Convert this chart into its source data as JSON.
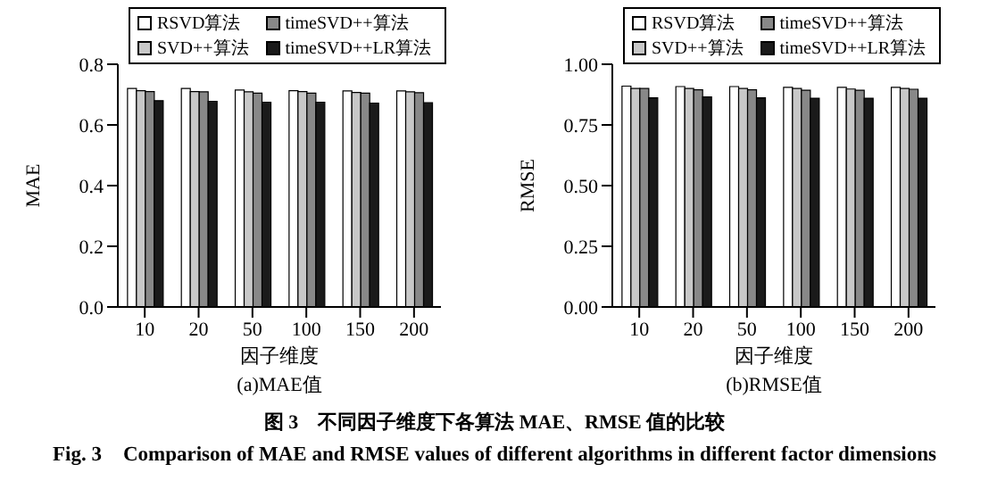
{
  "chart_data": [
    {
      "type": "bar",
      "title": "(a)MAE值",
      "xlabel": "因子维度",
      "ylabel": "MAE",
      "categories": [
        "10",
        "20",
        "50",
        "100",
        "150",
        "200"
      ],
      "series": [
        {
          "name": "RSVD算法",
          "color": "#ffffff",
          "values": [
            0.72,
            0.72,
            0.715,
            0.713,
            0.712,
            0.712
          ]
        },
        {
          "name": "SVD++算法",
          "color": "#c8c8c8",
          "values": [
            0.713,
            0.71,
            0.709,
            0.71,
            0.707,
            0.709
          ]
        },
        {
          "name": "timeSVD++算法",
          "color": "#888888",
          "values": [
            0.71,
            0.709,
            0.705,
            0.705,
            0.705,
            0.706
          ]
        },
        {
          "name": "timeSVD++LR算法",
          "color": "#1a1a1a",
          "values": [
            0.68,
            0.678,
            0.675,
            0.675,
            0.672,
            0.673
          ]
        }
      ],
      "ylim": [
        0,
        0.8
      ],
      "yticks": [
        {
          "value": 0,
          "label": "0.0"
        },
        0.2,
        0.4,
        0.6,
        0.8
      ],
      "legend": "top",
      "grid": false,
      "annotations": [
        "图 3　不同因子维度下各算法 MAE、RMSE 值的比较",
        "Fig. 3　Comparison of MAE and RMSE values of different algorithms in different factor dimensions"
      ]
    },
    {
      "type": "bar",
      "title": "(b)RMSE值",
      "xlabel": "因子维度",
      "ylabel": "RMSE",
      "categories": [
        "10",
        "20",
        "50",
        "100",
        "150",
        "200"
      ],
      "series": [
        {
          "name": "RSVD算法",
          "color": "#ffffff",
          "values": [
            0.91,
            0.908,
            0.908,
            0.905,
            0.905,
            0.905
          ]
        },
        {
          "name": "SVD++算法",
          "color": "#c8c8c8",
          "values": [
            0.9,
            0.9,
            0.9,
            0.9,
            0.898,
            0.9
          ]
        },
        {
          "name": "timeSVD++算法",
          "color": "#888888",
          "values": [
            0.9,
            0.895,
            0.895,
            0.893,
            0.893,
            0.897
          ]
        },
        {
          "name": "timeSVD++LR算法",
          "color": "#1a1a1a",
          "values": [
            0.862,
            0.865,
            0.862,
            0.86,
            0.86,
            0.86
          ]
        }
      ],
      "ylim": [
        0,
        1
      ],
      "yticks": [
        {
          "value": 0,
          "label": "0.00"
        },
        {
          "value": 0.25,
          "label": "0.25"
        },
        {
          "value": 0.5,
          "label": "0.50"
        },
        {
          "value": 0.75,
          "label": "0.75"
        },
        {
          "value": 1,
          "label": "1.00"
        }
      ],
      "legend": "top",
      "grid": false
    }
  ]
}
